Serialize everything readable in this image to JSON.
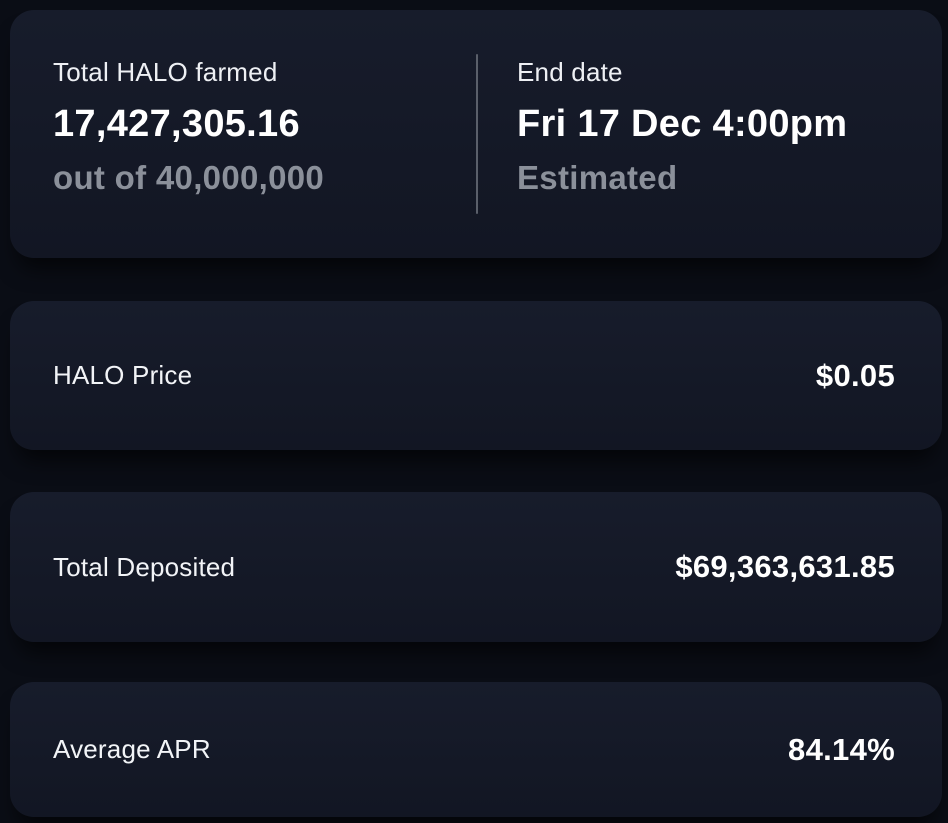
{
  "theme": {
    "page_bg": "#0a0d15",
    "card_bg_top": "#171c2b",
    "card_bg_bottom": "#121623",
    "text_primary": "#ffffff",
    "text_label": "#eef0f4",
    "text_secondary": "#8b909a",
    "divider_color": "#5a5f6a"
  },
  "summary": {
    "farmed": {
      "label": "Total HALO farmed",
      "value": "17,427,305.16",
      "sub": "out of 40,000,000"
    },
    "end_date": {
      "label": "End date",
      "value": "Fri 17 Dec 4:00pm",
      "sub": "Estimated"
    }
  },
  "stat_rows": [
    {
      "label": "HALO Price",
      "value": "$0.05"
    },
    {
      "label": "Total Deposited",
      "value": "$69,363,631.85"
    },
    {
      "label": "Average APR",
      "value": "84.14%"
    }
  ]
}
